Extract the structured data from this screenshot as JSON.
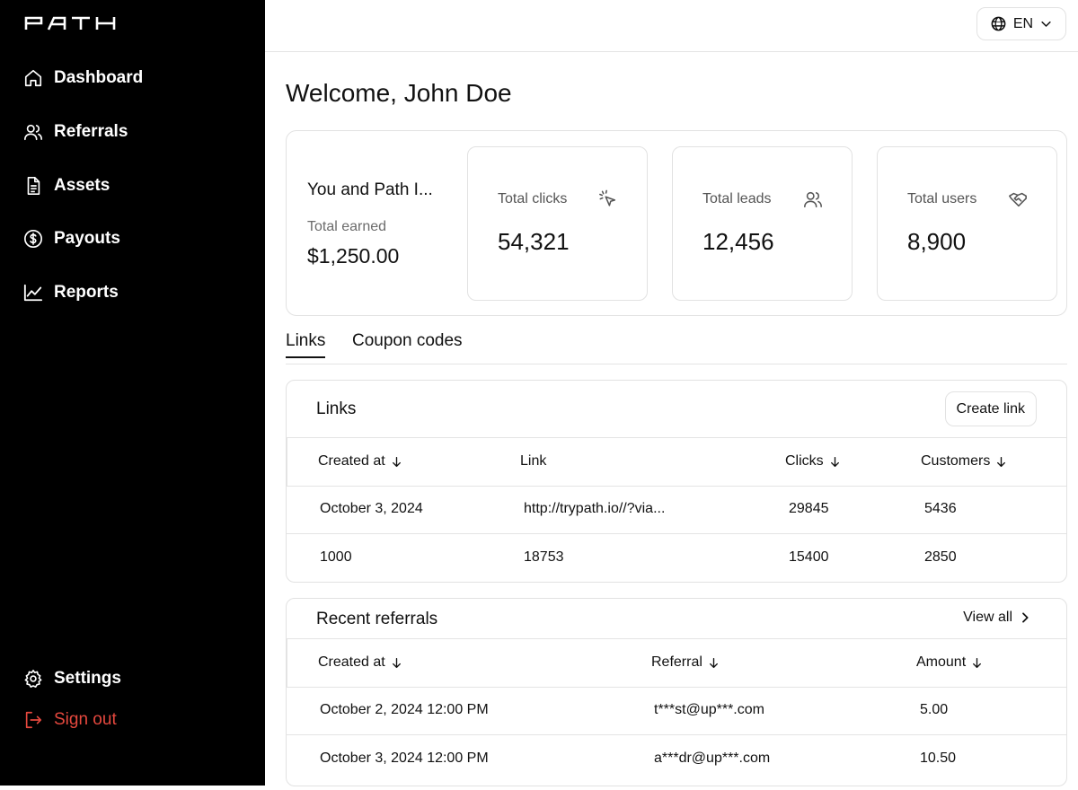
{
  "app": {
    "logo_text": "PATH"
  },
  "sidebar": {
    "items": [
      {
        "label": "Dashboard",
        "icon": "home-icon"
      },
      {
        "label": "Referrals",
        "icon": "users-icon"
      },
      {
        "label": "Assets",
        "icon": "document-icon"
      },
      {
        "label": "Payouts",
        "icon": "dollar-circle-icon"
      },
      {
        "label": "Reports",
        "icon": "chart-line-icon"
      }
    ],
    "settings_label": "Settings",
    "signout_label": "Sign out"
  },
  "header": {
    "language": "EN"
  },
  "main": {
    "welcome": "Welcome, John Doe",
    "earnings": {
      "title": "You and Path I...",
      "label": "Total earned",
      "value": "$1,250.00"
    },
    "stats": [
      {
        "label": "Total clicks",
        "value": "54,321",
        "icon": "cursor-click-icon"
      },
      {
        "label": "Total leads",
        "value": "12,456",
        "icon": "users-icon"
      },
      {
        "label": "Total users",
        "value": "8,900",
        "icon": "handshake-icon"
      }
    ],
    "tabs": [
      {
        "label": "Links",
        "active": true
      },
      {
        "label": "Coupon codes",
        "active": false
      }
    ]
  },
  "links_panel": {
    "title": "Links",
    "create_button": "Create link",
    "columns": [
      "Created at",
      "Link",
      "Clicks",
      "Customers"
    ],
    "rows": [
      [
        "October 3, 2024",
        "http://trypath.io//?via...",
        "29845",
        "5436"
      ],
      [
        "1000",
        "18753",
        "15400",
        "2850"
      ]
    ]
  },
  "referrals_panel": {
    "title": "Recent referrals",
    "view_all": "View all",
    "columns": [
      "Created at",
      "Referral",
      "Amount"
    ],
    "rows": [
      [
        "October 2, 2024 12:00 PM",
        "t***st@up***.com",
        "5.00"
      ],
      [
        "October 3, 2024 12:00 PM",
        "a***dr@up***.com",
        "10.50"
      ]
    ]
  },
  "colors": {
    "sidebar_bg": "#000000",
    "signout": "#e5483e",
    "border": "#e2e2e2"
  }
}
